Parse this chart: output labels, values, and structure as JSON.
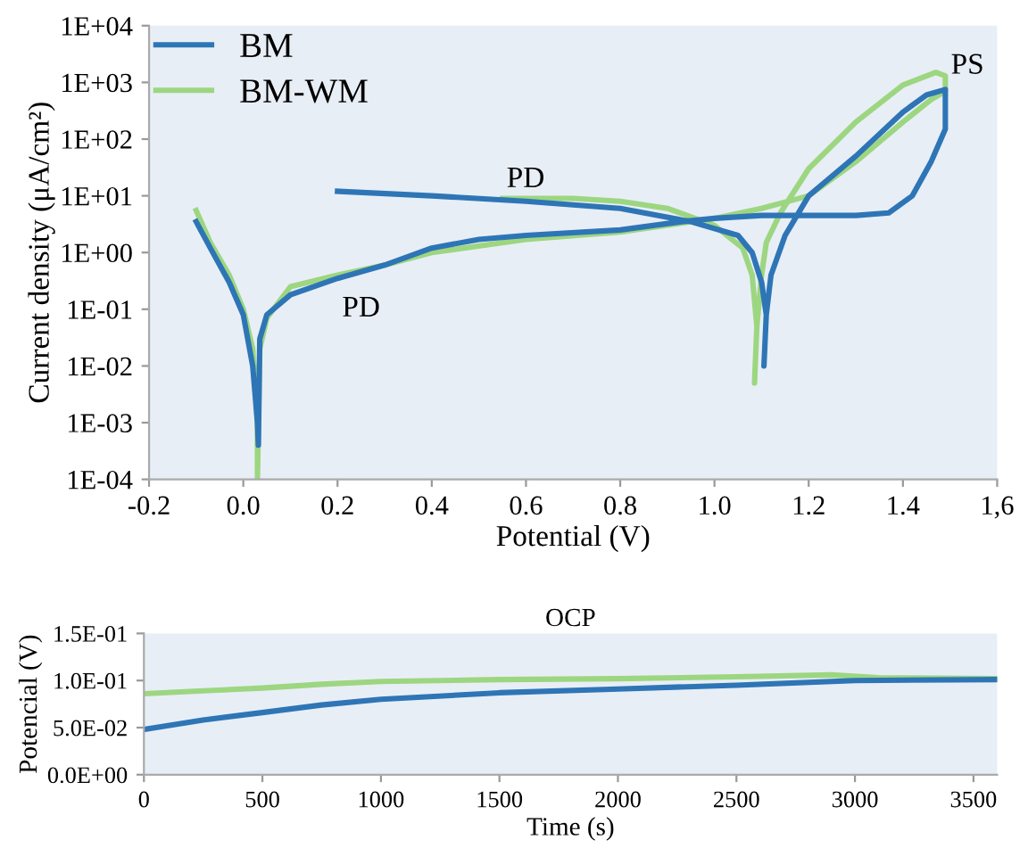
{
  "chart_data": [
    {
      "type": "line",
      "xlabel": "Potential (V)",
      "ylabel": "Current density (μA/cm²)",
      "log": "y",
      "xlim": [
        -0.2,
        1.6
      ],
      "ylim": [
        0.0001,
        10000
      ],
      "xticks": [
        {
          "value": -0.2,
          "label": "-0.2"
        },
        {
          "value": 0,
          "label": "0.0"
        },
        {
          "value": 0.2,
          "label": "0.2"
        },
        {
          "value": 0.4,
          "label": "0.4"
        },
        {
          "value": 0.6,
          "label": "0.6"
        },
        {
          "value": 0.8,
          "label": "0.8"
        },
        {
          "value": 1.0,
          "label": "1.0"
        },
        {
          "value": 1.2,
          "label": "1.2"
        },
        {
          "value": 1.4,
          "label": "1.4"
        },
        {
          "value": 1.6,
          "label": "1,6"
        }
      ],
      "yticks": [
        {
          "value": 0.0001,
          "label": "1E-04"
        },
        {
          "value": 0.001,
          "label": "1E-03"
        },
        {
          "value": 0.01,
          "label": "1E-02"
        },
        {
          "value": 0.1,
          "label": "1E-01"
        },
        {
          "value": 1,
          "label": "1E+00"
        },
        {
          "value": 10,
          "label": "1E+01"
        },
        {
          "value": 100,
          "label": "1E+02"
        },
        {
          "value": 1000,
          "label": "1E+03"
        },
        {
          "value": 10000,
          "label": "1E+04"
        }
      ],
      "grid": false,
      "legend": "top left",
      "annotations": [
        "PD",
        "PD",
        "PS"
      ],
      "series": [
        {
          "name": "BM-WM",
          "color": "#9dd680",
          "x": [
            -0.1,
            -0.07,
            -0.03,
            0.0,
            0.02,
            0.03,
            0.03,
            0.035,
            0.05,
            0.1,
            0.2,
            0.3,
            0.4,
            0.6,
            0.8,
            1.0,
            1.1,
            1.2,
            1.3,
            1.4,
            1.46,
            1.49,
            1.49,
            1.47,
            1.4,
            1.3,
            1.2,
            1.14,
            1.11,
            1.1,
            1.09,
            1.085,
            1.09,
            1.08,
            1.06,
            1.0,
            0.9,
            0.8,
            0.7,
            0.55
          ],
          "values": [
            5.5,
            1.5,
            0.4,
            0.1,
            0.02,
            0.001,
            0.0001,
            0.02,
            0.07,
            0.25,
            0.4,
            0.6,
            1.0,
            1.7,
            2.3,
            4,
            6,
            10,
            40,
            200,
            500,
            700,
            1300,
            1500,
            900,
            200,
            30,
            5,
            1.5,
            0.4,
            0.05,
            0.005,
            0.05,
            0.4,
            1.2,
            3,
            6,
            8,
            9,
            9
          ]
        },
        {
          "name": "BM",
          "color": "#2e75b6",
          "x": [
            -0.1,
            -0.07,
            -0.03,
            0.0,
            0.02,
            0.03,
            0.032,
            0.035,
            0.05,
            0.1,
            0.2,
            0.3,
            0.4,
            0.5,
            0.6,
            0.8,
            0.93,
            1.0,
            1.1,
            1.2,
            1.3,
            1.37,
            1.42,
            1.46,
            1.49,
            1.49,
            1.45,
            1.4,
            1.3,
            1.2,
            1.15,
            1.12,
            1.11,
            1.105,
            1.11,
            1.1,
            1.08,
            1.05,
            0.95,
            0.8,
            0.6,
            0.4,
            0.2
          ],
          "values": [
            3.5,
            1.2,
            0.3,
            0.08,
            0.01,
            0.001,
            0.0004,
            0.03,
            0.08,
            0.18,
            0.35,
            0.6,
            1.2,
            1.7,
            2.0,
            2.5,
            3.5,
            4.0,
            4.5,
            4.5,
            4.5,
            5,
            10,
            40,
            150,
            750,
            600,
            300,
            50,
            10,
            2,
            0.4,
            0.08,
            0.01,
            0.08,
            0.3,
            1.0,
            2,
            3.5,
            6,
            8,
            10,
            12
          ]
        }
      ]
    },
    {
      "type": "line",
      "title": "OCP",
      "xlabel": "Time (s)",
      "ylabel": "Potencial (V)",
      "xlim": [
        0,
        3600
      ],
      "ylim": [
        0,
        0.15
      ],
      "xticks": [
        0,
        500,
        1000,
        1500,
        2000,
        2500,
        3000,
        3500
      ],
      "yticks": [
        {
          "value": 0,
          "label": "0.0E+00"
        },
        {
          "value": 0.05,
          "label": "5.0E-02"
        },
        {
          "value": 0.1,
          "label": "1.0E-01"
        },
        {
          "value": 0.15,
          "label": "1.5E-01"
        }
      ],
      "grid": false,
      "series": [
        {
          "color": "#9dd680",
          "x": [
            0,
            250,
            500,
            750,
            1000,
            1500,
            2000,
            2500,
            2900,
            3100,
            3600
          ],
          "values": [
            0.086,
            0.089,
            0.092,
            0.096,
            0.099,
            0.101,
            0.102,
            0.104,
            0.106,
            0.103,
            0.102
          ]
        },
        {
          "color": "#2e75b6",
          "x": [
            0,
            250,
            500,
            750,
            1000,
            1500,
            2000,
            2500,
            3000,
            3600
          ],
          "values": [
            0.048,
            0.058,
            0.066,
            0.074,
            0.08,
            0.087,
            0.091,
            0.095,
            0.1,
            0.101
          ]
        }
      ]
    }
  ]
}
